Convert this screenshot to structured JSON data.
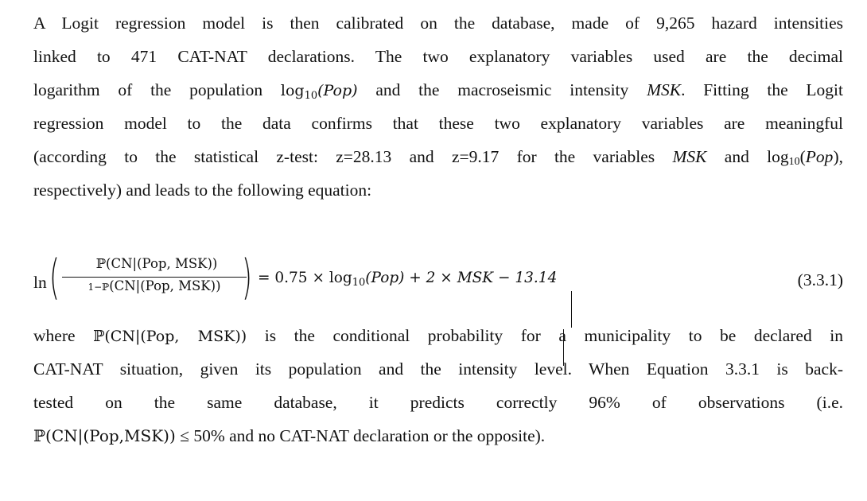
{
  "paragraph1": {
    "line1": "A Logit regression model is then calibrated on the database, made of 9,265 hazard intensities",
    "line2": "linked to 471 CAT-NAT declarations. The two explanatory variables used are the decimal",
    "line3_a": "logarithm of the population ",
    "line3_log": "log",
    "line3_sub": "10",
    "line3_pop": "(Pop)",
    "line3_b": " and the macroseismic intensity ",
    "line3_msk": "MSK",
    "line3_c": ". Fitting the Logit",
    "line4": "regression model to the data confirms that these two explanatory variables are meaningful",
    "line5_a": "(according to the statistical z-test: z=28.13 and z=9.17 for the variables ",
    "line5_msk": "MSK",
    "line5_b": " and log",
    "line5_sub": "10",
    "line5_c": "(",
    "line5_pop": "Pop",
    "line5_d": "),",
    "line6": "respectively) and leads to the following equation:"
  },
  "equation": {
    "ln": "ln",
    "numerator": "ℙ(CN|(Pop, MSK))",
    "denominator_prefix": "1−ℙ",
    "denominator": "(CN|(Pop, MSK))",
    "rhs_a": "= 0.75 × log",
    "rhs_sub": "10",
    "rhs_b": "(Pop) + 2 × MSK − 13.14",
    "number": "(3.3.1)"
  },
  "paragraph2": {
    "line1_a": "where ",
    "line1_expr": "ℙ(CN|(Pop, MSK))",
    "line1_b": " is the conditional probability for a municipality to be declared in",
    "line2": "CAT-NAT situation, given its population and the intensity level. When Equation 3.3.1 is back-",
    "line3": "tested on the same database, it predicts correctly 96% of observations (i.e.",
    "line4_expr": "ℙ(CN|(Pop,MSK))",
    "line4_b": " ≤ 50% and no CAT-NAT declaration or the opposite)."
  }
}
